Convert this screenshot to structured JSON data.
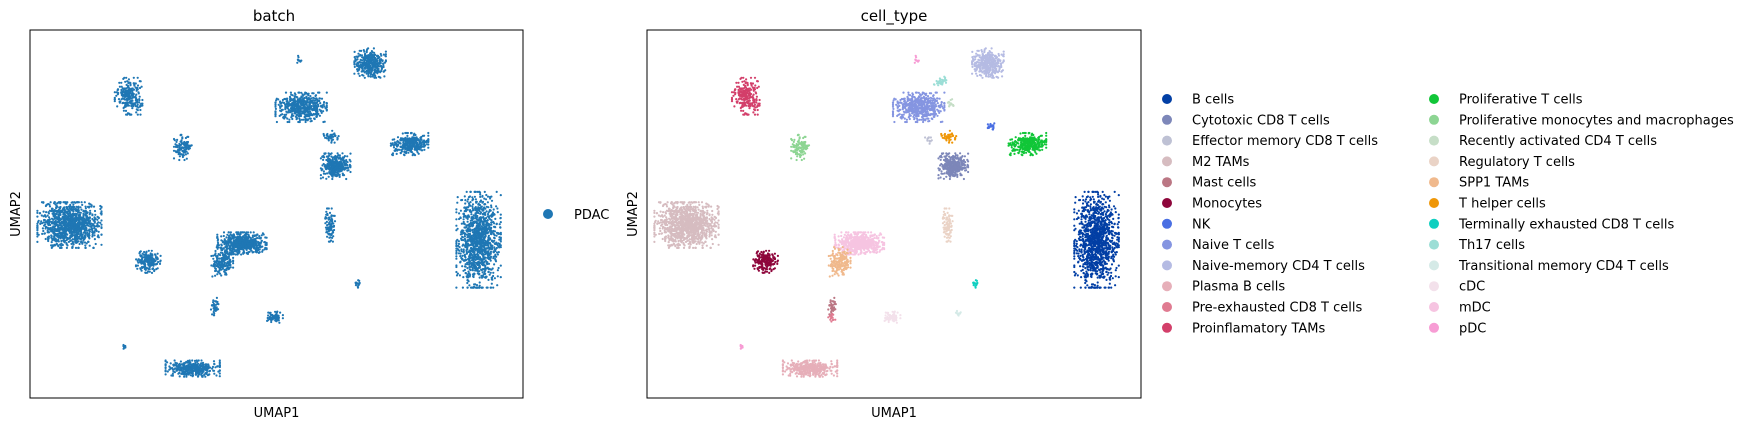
{
  "chart_data": [
    {
      "type": "scatter",
      "title": "batch",
      "xlabel": "UMAP1",
      "ylabel": "UMAP2",
      "grid": false,
      "legend": "right",
      "legend_entries": [
        {
          "name": "PDAC",
          "color": "#1f77b4"
        }
      ],
      "clusters": [
        {
          "label": "PDAC",
          "x": 0.08,
          "y": 0.53,
          "rx": 0.065,
          "ry": 0.062,
          "n": 1100
        },
        {
          "label": "PDAC",
          "x": 0.43,
          "y": 0.58,
          "rx": 0.05,
          "ry": 0.03,
          "n": 600
        },
        {
          "label": "PDAC",
          "x": 0.91,
          "y": 0.57,
          "rx": 0.045,
          "ry": 0.13,
          "n": 1200
        },
        {
          "label": "PDAC",
          "x": 0.2,
          "y": 0.18,
          "rx": 0.028,
          "ry": 0.05,
          "n": 250
        },
        {
          "label": "PDAC",
          "x": 0.55,
          "y": 0.21,
          "rx": 0.052,
          "ry": 0.04,
          "n": 520
        },
        {
          "label": "PDAC",
          "x": 0.69,
          "y": 0.09,
          "rx": 0.032,
          "ry": 0.04,
          "n": 400
        },
        {
          "label": "PDAC",
          "x": 0.31,
          "y": 0.32,
          "rx": 0.018,
          "ry": 0.035,
          "n": 110
        },
        {
          "label": "PDAC",
          "x": 0.62,
          "y": 0.37,
          "rx": 0.03,
          "ry": 0.035,
          "n": 330
        },
        {
          "label": "PDAC",
          "x": 0.77,
          "y": 0.31,
          "rx": 0.038,
          "ry": 0.03,
          "n": 330
        },
        {
          "label": "PDAC",
          "x": 0.24,
          "y": 0.63,
          "rx": 0.025,
          "ry": 0.03,
          "n": 200
        },
        {
          "label": "PDAC",
          "x": 0.39,
          "y": 0.63,
          "rx": 0.022,
          "ry": 0.04,
          "n": 190
        },
        {
          "label": "PDAC",
          "x": 0.61,
          "y": 0.53,
          "rx": 0.012,
          "ry": 0.045,
          "n": 90
        },
        {
          "label": "PDAC",
          "x": 0.375,
          "y": 0.75,
          "rx": 0.01,
          "ry": 0.025,
          "n": 40
        },
        {
          "label": "PDAC",
          "x": 0.495,
          "y": 0.78,
          "rx": 0.018,
          "ry": 0.018,
          "n": 70
        },
        {
          "label": "PDAC",
          "x": 0.33,
          "y": 0.92,
          "rx": 0.055,
          "ry": 0.022,
          "n": 400
        },
        {
          "label": "PDAC",
          "x": 0.19,
          "y": 0.86,
          "rx": 0.006,
          "ry": 0.01,
          "n": 10
        },
        {
          "label": "PDAC",
          "x": 0.545,
          "y": 0.08,
          "rx": 0.006,
          "ry": 0.01,
          "n": 10
        },
        {
          "label": "PDAC",
          "x": 0.665,
          "y": 0.69,
          "rx": 0.006,
          "ry": 0.01,
          "n": 15
        },
        {
          "label": "PDAC",
          "x": 0.61,
          "y": 0.29,
          "rx": 0.016,
          "ry": 0.016,
          "n": 40
        }
      ]
    },
    {
      "type": "scatter",
      "title": "cell_type",
      "xlabel": "UMAP1",
      "ylabel": "UMAP2",
      "grid": false,
      "legend": "right",
      "legend_columns": 2,
      "legend_entries": [
        {
          "name": "B cells",
          "color": "#023fa5"
        },
        {
          "name": "Cytotoxic CD8 T cells",
          "color": "#7d87b9"
        },
        {
          "name": "Effector memory CD8 T cells",
          "color": "#bec1d4"
        },
        {
          "name": "M2 TAMs",
          "color": "#d6bcc0"
        },
        {
          "name": "Mast cells",
          "color": "#bb7784"
        },
        {
          "name": "Monocytes",
          "color": "#8e063b"
        },
        {
          "name": "NK",
          "color": "#4a6fe3"
        },
        {
          "name": "Naive T cells",
          "color": "#8595e1"
        },
        {
          "name": "Naive-memory CD4 T cells",
          "color": "#b5bbe3"
        },
        {
          "name": "Plasma B cells",
          "color": "#e6afb9"
        },
        {
          "name": "Pre-exhausted CD8 T cells",
          "color": "#e07b91"
        },
        {
          "name": "Proinflamatory TAMs",
          "color": "#d33f6a"
        },
        {
          "name": "Proliferative T cells",
          "color": "#11c638"
        },
        {
          "name": "Proliferative monocytes and macrophages",
          "color": "#8dd593"
        },
        {
          "name": "Recently activated CD4 T cells",
          "color": "#c6dec7"
        },
        {
          "name": "Regulatory T cells",
          "color": "#ead3c6"
        },
        {
          "name": "SPP1 TAMs",
          "color": "#f0b98d"
        },
        {
          "name": "T helper cells",
          "color": "#ef9708"
        },
        {
          "name": "Terminally exhausted CD8 T cells",
          "color": "#0fcfc0"
        },
        {
          "name": "Th17 cells",
          "color": "#9cded6"
        },
        {
          "name": "Transitional memory CD4 T cells",
          "color": "#d5eae7"
        },
        {
          "name": "cDC",
          "color": "#f3e1eb"
        },
        {
          "name": "mDC",
          "color": "#f6c4e1"
        },
        {
          "name": "pDC",
          "color": "#f79cd4"
        }
      ],
      "clusters": [
        {
          "label": "M2 TAMs",
          "x": 0.08,
          "y": 0.53,
          "rx": 0.065,
          "ry": 0.062,
          "n": 1100
        },
        {
          "label": "mDC",
          "x": 0.43,
          "y": 0.58,
          "rx": 0.05,
          "ry": 0.03,
          "n": 600
        },
        {
          "label": "B cells",
          "x": 0.91,
          "y": 0.57,
          "rx": 0.045,
          "ry": 0.13,
          "n": 1200
        },
        {
          "label": "Proinflamatory TAMs",
          "x": 0.2,
          "y": 0.18,
          "rx": 0.028,
          "ry": 0.05,
          "n": 250
        },
        {
          "label": "Naive T cells",
          "x": 0.55,
          "y": 0.21,
          "rx": 0.052,
          "ry": 0.04,
          "n": 520
        },
        {
          "label": "Naive-memory CD4 T cells",
          "x": 0.69,
          "y": 0.09,
          "rx": 0.032,
          "ry": 0.04,
          "n": 400
        },
        {
          "label": "Proliferative monocytes and macrophages",
          "x": 0.31,
          "y": 0.32,
          "rx": 0.018,
          "ry": 0.035,
          "n": 110
        },
        {
          "label": "Cytotoxic CD8 T cells",
          "x": 0.62,
          "y": 0.37,
          "rx": 0.03,
          "ry": 0.035,
          "n": 330
        },
        {
          "label": "Proliferative T cells",
          "x": 0.77,
          "y": 0.31,
          "rx": 0.038,
          "ry": 0.03,
          "n": 330
        },
        {
          "label": "Monocytes",
          "x": 0.24,
          "y": 0.63,
          "rx": 0.025,
          "ry": 0.03,
          "n": 200
        },
        {
          "label": "SPP1 TAMs",
          "x": 0.39,
          "y": 0.63,
          "rx": 0.022,
          "ry": 0.04,
          "n": 190
        },
        {
          "label": "Regulatory T cells",
          "x": 0.61,
          "y": 0.53,
          "rx": 0.012,
          "ry": 0.045,
          "n": 90
        },
        {
          "label": "Mast cells",
          "x": 0.375,
          "y": 0.75,
          "rx": 0.01,
          "ry": 0.025,
          "n": 40
        },
        {
          "label": "cDC",
          "x": 0.495,
          "y": 0.78,
          "rx": 0.018,
          "ry": 0.018,
          "n": 70
        },
        {
          "label": "Plasma B cells",
          "x": 0.33,
          "y": 0.92,
          "rx": 0.055,
          "ry": 0.022,
          "n": 400
        },
        {
          "label": "pDC",
          "x": 0.19,
          "y": 0.86,
          "rx": 0.006,
          "ry": 0.01,
          "n": 10
        },
        {
          "label": "pDC",
          "x": 0.545,
          "y": 0.08,
          "rx": 0.006,
          "ry": 0.01,
          "n": 10
        },
        {
          "label": "Terminally exhausted CD8 T cells",
          "x": 0.665,
          "y": 0.69,
          "rx": 0.006,
          "ry": 0.01,
          "n": 15
        },
        {
          "label": "T helper cells",
          "x": 0.61,
          "y": 0.29,
          "rx": 0.016,
          "ry": 0.016,
          "n": 40
        },
        {
          "label": "Th17 cells",
          "x": 0.595,
          "y": 0.14,
          "rx": 0.014,
          "ry": 0.014,
          "n": 35
        },
        {
          "label": "NK",
          "x": 0.695,
          "y": 0.26,
          "rx": 0.008,
          "ry": 0.012,
          "n": 20
        },
        {
          "label": "Effector memory CD8 T cells",
          "x": 0.57,
          "y": 0.3,
          "rx": 0.008,
          "ry": 0.01,
          "n": 12
        },
        {
          "label": "Recently activated CD4 T cells",
          "x": 0.615,
          "y": 0.2,
          "rx": 0.01,
          "ry": 0.012,
          "n": 15
        },
        {
          "label": "Transitional memory CD4 T cells",
          "x": 0.63,
          "y": 0.77,
          "rx": 0.006,
          "ry": 0.008,
          "n": 10
        },
        {
          "label": "Pre-exhausted CD8 T cells",
          "x": 0.375,
          "y": 0.78,
          "rx": 0.008,
          "ry": 0.012,
          "n": 15
        }
      ]
    }
  ]
}
